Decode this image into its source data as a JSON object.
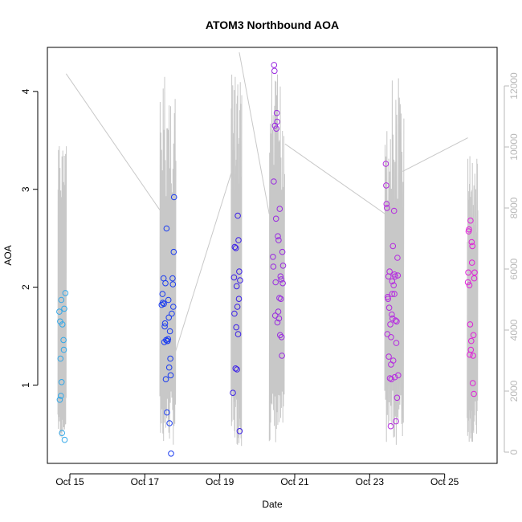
{
  "chart_data": {
    "type": "scatter",
    "title": "ATOM3 Northbound AOA",
    "xlabel": "Date",
    "ylabel": "AOA",
    "x_ticks": [
      "Oct 15",
      "Oct 17",
      "Oct 19",
      "Oct 21",
      "Oct 23",
      "Oct 25"
    ],
    "x_tick_days": [
      15,
      17,
      19,
      21,
      23,
      25
    ],
    "xlim": [
      14.4,
      26.4
    ],
    "ylim": [
      0.2,
      4.45
    ],
    "y_ticks": [
      1,
      2,
      3,
      4
    ],
    "y2lim": [
      0,
      13000
    ],
    "y2_ticks": [
      0,
      2000,
      4000,
      6000,
      8000,
      10000,
      12000
    ],
    "y2_tick_labels": [
      "0",
      "2000",
      "4000",
      "6000",
      "8000",
      "10000",
      "12000"
    ],
    "colors": {
      "early": "#33a8e8",
      "mid": "#1a3cf0",
      "late": "#9a2ae0",
      "latest": "#e020d8",
      "secondary_line": "#c8c8c8"
    },
    "series": [
      {
        "points": [
          [
            14.72,
            1.75
          ],
          [
            14.73,
            0.85
          ],
          [
            14.74,
            1.65
          ],
          [
            14.75,
            1.27
          ],
          [
            14.76,
            0.89
          ],
          [
            14.77,
            1.87
          ],
          [
            14.78,
            1.03
          ],
          [
            14.79,
            0.51
          ],
          [
            14.8,
            1.62
          ],
          [
            14.83,
            1.46
          ],
          [
            14.84,
            1.36
          ],
          [
            14.85,
            1.78
          ],
          [
            14.86,
            0.44
          ],
          [
            14.88,
            1.94
          ]
        ],
        "color": "#33a8e8"
      },
      {
        "points": [
          [
            17.45,
            1.82
          ],
          [
            17.47,
            1.93
          ],
          [
            17.48,
            1.84
          ],
          [
            17.5,
            2.09
          ],
          [
            17.51,
            1.83
          ],
          [
            17.52,
            1.44
          ],
          [
            17.53,
            1.6
          ],
          [
            17.54,
            1.63
          ],
          [
            17.55,
            2.04
          ],
          [
            17.56,
            1.06
          ],
          [
            17.57,
            1.46
          ],
          [
            17.58,
            2.6
          ],
          [
            17.59,
            0.72
          ],
          [
            17.6,
            1.45
          ],
          [
            17.61,
            1.45
          ],
          [
            17.62,
            1.47
          ],
          [
            17.63,
            1.87
          ],
          [
            17.64,
            1.69
          ],
          [
            17.65,
            1.18
          ],
          [
            17.66,
            0.61
          ],
          [
            17.67,
            1.55
          ],
          [
            17.68,
            1.27
          ],
          [
            17.69,
            1.1
          ],
          [
            17.7,
            0.3
          ],
          [
            17.72,
            1.73
          ],
          [
            17.74,
            2.09
          ],
          [
            17.75,
            2.03
          ],
          [
            17.76,
            1.8
          ],
          [
            17.77,
            2.36
          ],
          [
            17.78,
            2.92
          ]
        ],
        "color": "#1a3cf0"
      },
      {
        "points": [
          [
            19.35,
            0.92
          ],
          [
            19.38,
            2.1
          ],
          [
            19.39,
            1.73
          ],
          [
            19.4,
            2.41
          ],
          [
            19.42,
            1.17
          ],
          [
            19.43,
            2.4
          ],
          [
            19.44,
            1.59
          ],
          [
            19.45,
            2.01
          ],
          [
            19.46,
            1.16
          ],
          [
            19.47,
            1.8
          ],
          [
            19.48,
            2.73
          ],
          [
            19.49,
            1.52
          ],
          [
            19.5,
            2.48
          ],
          [
            19.51,
            1.88
          ],
          [
            19.52,
            2.16
          ],
          [
            19.53,
            0.53
          ],
          [
            19.54,
            2.07
          ]
        ],
        "color": "#3a1ee8"
      },
      {
        "points": [
          [
            20.42,
            2.31
          ],
          [
            20.43,
            2.21
          ],
          [
            20.44,
            3.08
          ],
          [
            20.45,
            4.27
          ],
          [
            20.46,
            4.21
          ],
          [
            20.47,
            3.65
          ],
          [
            20.48,
            1.71
          ],
          [
            20.49,
            2.05
          ],
          [
            20.5,
            2.7
          ],
          [
            20.51,
            3.62
          ],
          [
            20.52,
            3.78
          ],
          [
            20.53,
            3.69
          ],
          [
            20.54,
            1.64
          ],
          [
            20.55,
            2.52
          ],
          [
            20.56,
            1.75
          ],
          [
            20.57,
            2.48
          ],
          [
            20.58,
            1.68
          ],
          [
            20.59,
            1.89
          ],
          [
            20.6,
            2.8
          ],
          [
            20.61,
            1.51
          ],
          [
            20.62,
            2.11
          ],
          [
            20.63,
            1.88
          ],
          [
            20.64,
            2.08
          ],
          [
            20.65,
            1.49
          ],
          [
            20.66,
            1.3
          ],
          [
            20.67,
            2.36
          ],
          [
            20.68,
            2.04
          ],
          [
            20.69,
            2.22
          ]
        ],
        "color": "#9a2ae0"
      },
      {
        "points": [
          [
            23.43,
            3.26
          ],
          [
            23.44,
            3.04
          ],
          [
            23.45,
            2.85
          ],
          [
            23.46,
            2.81
          ],
          [
            23.47,
            1.52
          ],
          [
            23.48,
            1.9
          ],
          [
            23.49,
            1.88
          ],
          [
            23.5,
            2.11
          ],
          [
            23.51,
            1.29
          ],
          [
            23.52,
            1.79
          ],
          [
            23.53,
            2.16
          ],
          [
            23.54,
            1.07
          ],
          [
            23.55,
            1.62
          ],
          [
            23.56,
            0.58
          ],
          [
            23.57,
            1.49
          ],
          [
            23.58,
            1.06
          ],
          [
            23.59,
            1.72
          ],
          [
            23.6,
            2.06
          ],
          [
            23.61,
            1.68
          ],
          [
            23.62,
            2.42
          ],
          [
            23.63,
            1.25
          ],
          [
            23.64,
            2.02
          ],
          [
            23.65,
            2.78
          ],
          [
            23.66,
            1.93
          ],
          [
            23.67,
            1.08
          ],
          [
            23.68,
            2.11
          ],
          [
            23.69,
            1.66
          ],
          [
            23.7,
            0.63
          ],
          [
            23.71,
            1.43
          ],
          [
            23.72,
            1.65
          ],
          [
            23.73,
            0.87
          ],
          [
            23.74,
            2.3
          ],
          [
            23.75,
            2.12
          ],
          [
            23.76,
            1.1
          ],
          [
            23.57,
            1.21
          ],
          [
            23.6,
            1.93
          ],
          [
            23.66,
            2.13
          ]
        ],
        "color": "#b52ae0"
      },
      {
        "points": [
          [
            25.62,
            2.05
          ],
          [
            25.63,
            2.15
          ],
          [
            25.64,
            2.57
          ],
          [
            25.65,
            2.59
          ],
          [
            25.66,
            2.02
          ],
          [
            25.67,
            1.31
          ],
          [
            25.68,
            1.62
          ],
          [
            25.69,
            2.68
          ],
          [
            25.7,
            1.36
          ],
          [
            25.71,
            1.45
          ],
          [
            25.72,
            2.46
          ],
          [
            25.73,
            2.25
          ],
          [
            25.74,
            2.42
          ],
          [
            25.75,
            1.02
          ],
          [
            25.76,
            1.3
          ],
          [
            25.77,
            1.51
          ],
          [
            25.78,
            0.91
          ],
          [
            25.79,
            2.09
          ],
          [
            25.8,
            2.15
          ]
        ],
        "color": "#e020d8"
      }
    ],
    "secondary_axis_series": {
      "color": "#c8c8c8",
      "blocks": [
        {
          "start": 14.68,
          "end": 14.9,
          "low": 400,
          "high": 10300
        },
        {
          "start": 17.4,
          "end": 17.82,
          "low": 200,
          "high": 12500
        },
        {
          "start": 19.3,
          "end": 19.58,
          "low": 200,
          "high": 12400
        },
        {
          "start": 20.32,
          "end": 20.72,
          "low": 200,
          "high": 12500
        },
        {
          "start": 23.4,
          "end": 23.9,
          "low": 200,
          "high": 12400
        },
        {
          "start": 25.6,
          "end": 25.88,
          "low": 300,
          "high": 9900
        }
      ],
      "connectors": [
        [
          [
            14.9,
            12400
          ],
          [
            17.42,
            7900
          ]
        ],
        [
          [
            17.82,
            3300
          ],
          [
            19.32,
            9200
          ]
        ],
        [
          [
            19.52,
            13100
          ],
          [
            20.32,
            7800
          ]
        ],
        [
          [
            20.74,
            10100
          ],
          [
            23.42,
            7800
          ]
        ],
        [
          [
            23.88,
            9200
          ],
          [
            25.62,
            10300
          ]
        ]
      ]
    }
  }
}
